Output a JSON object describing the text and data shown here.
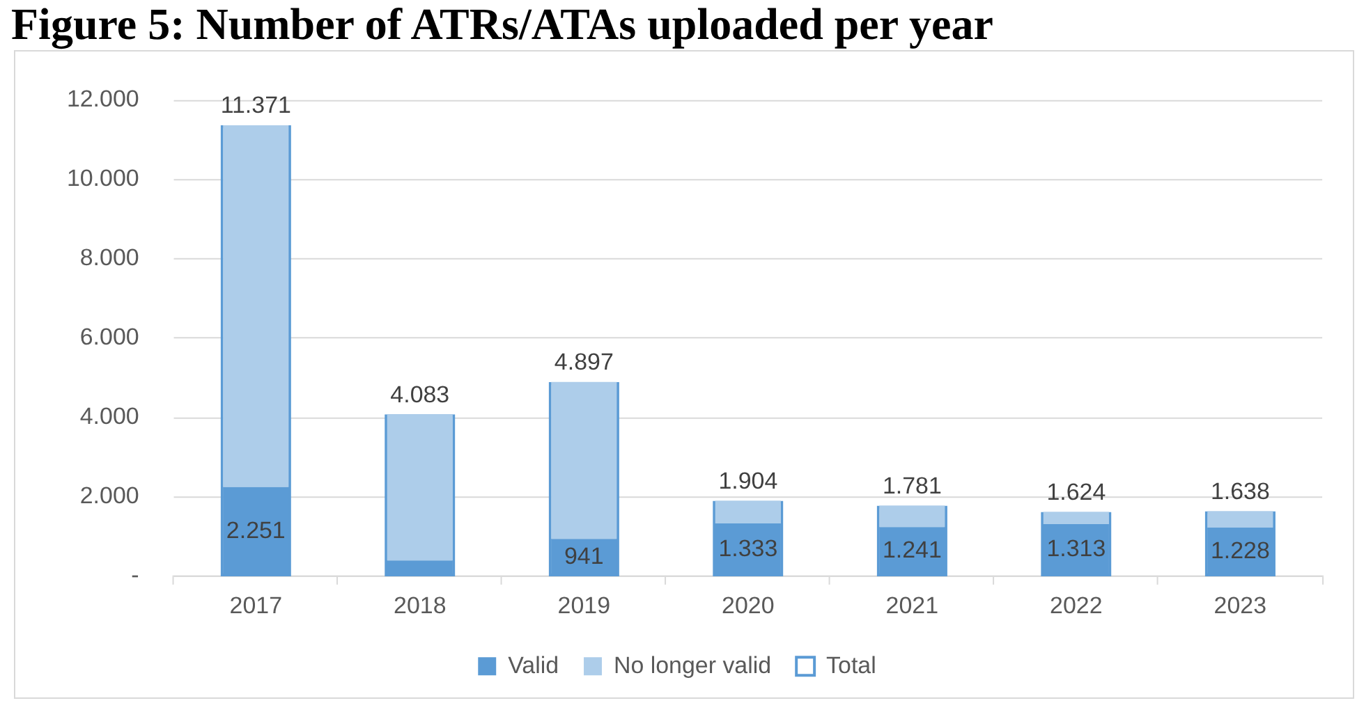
{
  "chart_data": {
    "type": "bar",
    "title": "Figure 5: Number of ATRs/ATAs uploaded per year",
    "categories": [
      "2017",
      "2018",
      "2019",
      "2020",
      "2021",
      "2022",
      "2023"
    ],
    "series": [
      {
        "name": "Valid",
        "color": "#5b9bd5",
        "values": [
          2251,
          400,
          941,
          1333,
          1241,
          1313,
          1228
        ],
        "value_labels": [
          "2.251",
          null,
          "941",
          "1.333",
          "1.241",
          "1.313",
          "1.228"
        ]
      },
      {
        "name": "No longer valid",
        "color": "#adcdea",
        "values": [
          9120,
          3680,
          3960,
          570,
          540,
          310,
          410
        ]
      },
      {
        "name": "Total",
        "color": "#5b9bd5",
        "axis": "y2",
        "values": [
          11371,
          4083,
          4897,
          1904,
          1781,
          1624,
          1638
        ],
        "value_labels": [
          "11.371",
          "4.083",
          "4.897",
          "1.904",
          "1.781",
          "1.624",
          "1.638"
        ]
      }
    ],
    "stacked": true,
    "ylim": [
      0,
      12000
    ],
    "y2lim": [
      0,
      12000
    ],
    "yticks": [
      {
        "value": 0,
        "label": "-"
      },
      {
        "value": 2000,
        "label": "2.000"
      },
      {
        "value": 4000,
        "label": "4.000"
      },
      {
        "value": 6000,
        "label": "6.000"
      },
      {
        "value": 8000,
        "label": "8.000"
      },
      {
        "value": 10000,
        "label": "10.000"
      },
      {
        "value": 12000,
        "label": "12.000"
      }
    ],
    "grid": "y",
    "legend": "bottom"
  }
}
